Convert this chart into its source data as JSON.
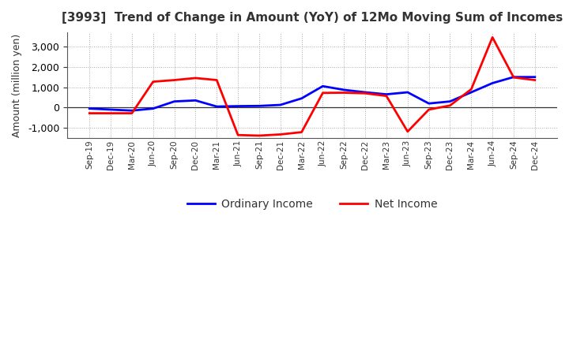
{
  "title": "[3993]  Trend of Change in Amount (YoY) of 12Mo Moving Sum of Incomes",
  "ylabel": "Amount (million yen)",
  "x_labels": [
    "Sep-19",
    "Dec-19",
    "Mar-20",
    "Jun-20",
    "Sep-20",
    "Dec-20",
    "Mar-21",
    "Jun-21",
    "Sep-21",
    "Dec-21",
    "Mar-22",
    "Jun-22",
    "Sep-22",
    "Dec-22",
    "Mar-23",
    "Jun-23",
    "Sep-23",
    "Dec-23",
    "Mar-24",
    "Jun-24",
    "Sep-24",
    "Dec-24"
  ],
  "ordinary_income": [
    -50,
    -100,
    -150,
    -50,
    300,
    350,
    50,
    70,
    80,
    130,
    450,
    1050,
    870,
    750,
    650,
    750,
    200,
    300,
    750,
    1200,
    1500,
    1500
  ],
  "net_income": [
    -280,
    -280,
    -280,
    1270,
    1350,
    1450,
    1350,
    -1350,
    -1380,
    -1320,
    -1210,
    720,
    730,
    700,
    570,
    -1180,
    -100,
    100,
    900,
    3450,
    1480,
    1350
  ],
  "ordinary_income_color": "#0000ff",
  "net_income_color": "#ff0000",
  "ylim_min": -1500,
  "ylim_max": 3700,
  "background_color": "#ffffff",
  "grid_color": "#aaaaaa",
  "title_color": "#333333",
  "legend_labels": [
    "Ordinary Income",
    "Net Income"
  ],
  "line_width": 2.0
}
